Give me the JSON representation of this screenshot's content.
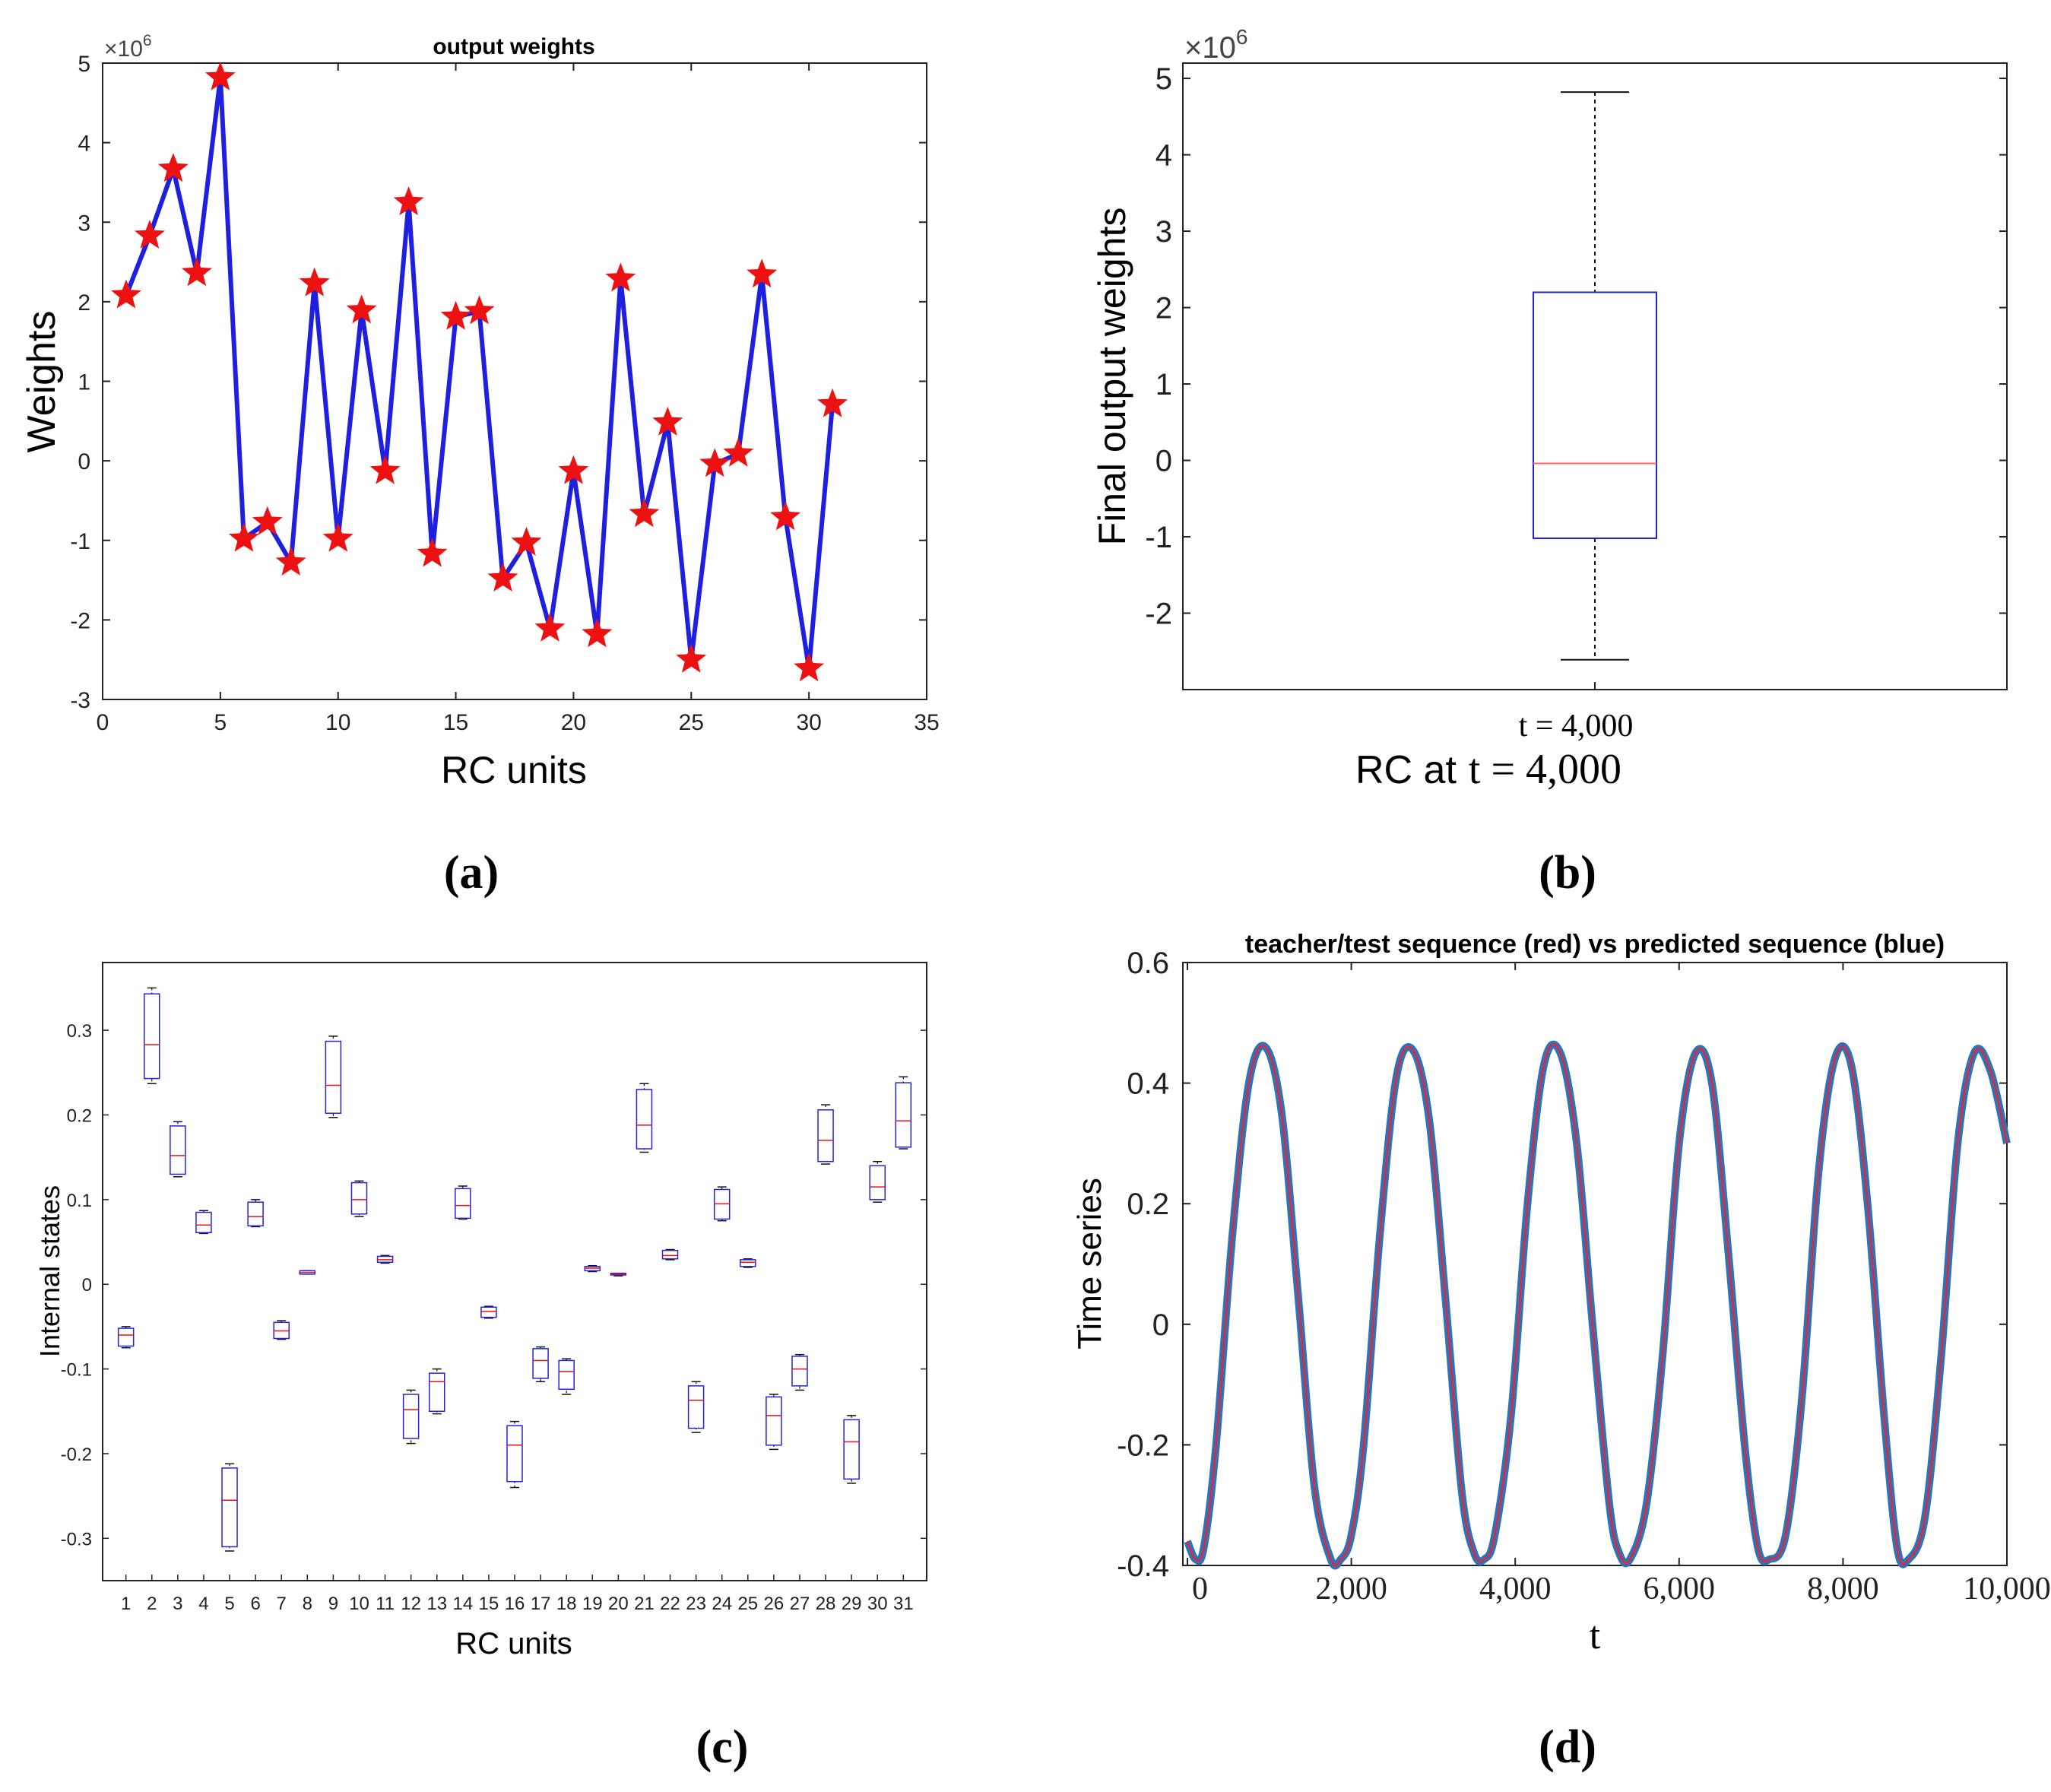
{
  "figure": {
    "panel_labels": [
      "(a)",
      "(b)",
      "(c)",
      "(d)"
    ]
  },
  "chart_data": [
    {
      "id": "a",
      "type": "line",
      "title": "output weights",
      "xlabel": "RC units",
      "ylabel": "Weights",
      "exponent": "×10^6",
      "xlim": [
        0,
        35
      ],
      "ylim": [
        -3,
        5
      ],
      "xticks": [
        "0",
        "5",
        "10",
        "15",
        "20",
        "25",
        "30",
        "35"
      ],
      "yticks": [
        "-3",
        "-2",
        "-1",
        "0",
        "1",
        "2",
        "3",
        "4",
        "5"
      ],
      "line_color": "#1f1fe0",
      "marker_color": "#ee1111",
      "marker": "star",
      "x": [
        1,
        2,
        3,
        4,
        5,
        6,
        7,
        8,
        9,
        10,
        11,
        12,
        13,
        14,
        15,
        16,
        17,
        18,
        19,
        20,
        21,
        22,
        23,
        24,
        25,
        26,
        27,
        28,
        29,
        30,
        31
      ],
      "values": [
        2.08,
        2.83,
        3.67,
        2.36,
        4.82,
        -0.98,
        -0.77,
        -1.28,
        2.23,
        -0.98,
        1.89,
        -0.13,
        3.25,
        -1.17,
        1.81,
        1.88,
        -1.48,
        -1.03,
        -2.11,
        -0.13,
        -2.18,
        2.29,
        -0.67,
        0.48,
        -2.5,
        -0.04,
        0.09,
        2.34,
        -0.71,
        -2.61,
        0.71
      ]
    },
    {
      "id": "b",
      "type": "boxplot",
      "xlabel_prefix": "RC at",
      "xlabel_value": "t = 4,000",
      "ylabel": "Final output weights",
      "exponent": "×10^6",
      "categories": [
        "t = 4,000"
      ],
      "ylim": [
        -3,
        5.2
      ],
      "yticks": [
        "-2",
        "-1",
        "0",
        "1",
        "2",
        "3",
        "4",
        "5"
      ],
      "box_color": "#2222dd",
      "median_color": "#ff6666",
      "box": {
        "min": -2.61,
        "q1": -1.02,
        "median": -0.04,
        "q3": 2.2,
        "max": 4.82
      }
    },
    {
      "id": "c",
      "type": "boxplot",
      "xlabel": "RC units",
      "ylabel": "Internal states",
      "ylim": [
        -0.35,
        0.38
      ],
      "yticks": [
        "-0.3",
        "-0.2",
        "-0.1",
        "0",
        "0.1",
        "0.2",
        "0.3"
      ],
      "categories": [
        "1",
        "2",
        "3",
        "4",
        "5",
        "6",
        "7",
        "8",
        "9",
        "10",
        "11",
        "12",
        "13",
        "14",
        "15",
        "16",
        "17",
        "18",
        "19",
        "20",
        "21",
        "22",
        "23",
        "24",
        "25",
        "26",
        "27",
        "28",
        "29",
        "30",
        "31"
      ],
      "box_color": "#2222dd",
      "median_color": "#ee1111",
      "boxes": [
        {
          "min": -0.075,
          "q1": -0.073,
          "median": -0.06,
          "q3": -0.052,
          "max": -0.05
        },
        {
          "min": 0.237,
          "q1": 0.243,
          "median": 0.283,
          "q3": 0.343,
          "max": 0.35
        },
        {
          "min": 0.127,
          "q1": 0.13,
          "median": 0.152,
          "q3": 0.187,
          "max": 0.192
        },
        {
          "min": 0.06,
          "q1": 0.061,
          "median": 0.07,
          "q3": 0.085,
          "max": 0.087
        },
        {
          "min": -0.315,
          "q1": -0.31,
          "median": -0.255,
          "q3": -0.217,
          "max": -0.212
        },
        {
          "min": 0.068,
          "q1": 0.069,
          "median": 0.08,
          "q3": 0.097,
          "max": 0.1
        },
        {
          "min": -0.065,
          "q1": -0.064,
          "median": -0.055,
          "q3": -0.045,
          "max": -0.043
        },
        {
          "min": 0.012,
          "q1": 0.012,
          "median": 0.014,
          "q3": 0.016,
          "max": 0.016
        },
        {
          "min": 0.197,
          "q1": 0.202,
          "median": 0.235,
          "q3": 0.287,
          "max": 0.293
        },
        {
          "min": 0.08,
          "q1": 0.083,
          "median": 0.1,
          "q3": 0.12,
          "max": 0.122
        },
        {
          "min": 0.025,
          "q1": 0.026,
          "median": 0.029,
          "q3": 0.033,
          "max": 0.034
        },
        {
          "min": -0.188,
          "q1": -0.182,
          "median": -0.148,
          "q3": -0.13,
          "max": -0.125
        },
        {
          "min": -0.153,
          "q1": -0.15,
          "median": -0.115,
          "q3": -0.105,
          "max": -0.1
        },
        {
          "min": 0.077,
          "q1": 0.078,
          "median": 0.093,
          "q3": 0.113,
          "max": 0.116
        },
        {
          "min": -0.04,
          "q1": -0.039,
          "median": -0.032,
          "q3": -0.027,
          "max": -0.026
        },
        {
          "min": -0.24,
          "q1": -0.233,
          "median": -0.19,
          "q3": -0.167,
          "max": -0.162
        },
        {
          "min": -0.115,
          "q1": -0.111,
          "median": -0.09,
          "q3": -0.076,
          "max": -0.074
        },
        {
          "min": -0.13,
          "q1": -0.124,
          "median": -0.103,
          "q3": -0.09,
          "max": -0.088
        },
        {
          "min": 0.015,
          "q1": 0.016,
          "median": 0.019,
          "q3": 0.021,
          "max": 0.022
        },
        {
          "min": 0.01,
          "q1": 0.011,
          "median": 0.012,
          "q3": 0.013,
          "max": 0.013
        },
        {
          "min": 0.156,
          "q1": 0.16,
          "median": 0.188,
          "q3": 0.23,
          "max": 0.237
        },
        {
          "min": 0.029,
          "q1": 0.03,
          "median": 0.034,
          "q3": 0.04,
          "max": 0.041
        },
        {
          "min": -0.175,
          "q1": -0.17,
          "median": -0.137,
          "q3": -0.12,
          "max": -0.115
        },
        {
          "min": 0.075,
          "q1": 0.077,
          "median": 0.095,
          "q3": 0.112,
          "max": 0.115
        },
        {
          "min": 0.02,
          "q1": 0.021,
          "median": 0.026,
          "q3": 0.029,
          "max": 0.03
        },
        {
          "min": -0.195,
          "q1": -0.19,
          "median": -0.155,
          "q3": -0.133,
          "max": -0.13
        },
        {
          "min": -0.125,
          "q1": -0.12,
          "median": -0.1,
          "q3": -0.085,
          "max": -0.083
        },
        {
          "min": 0.142,
          "q1": 0.145,
          "median": 0.17,
          "q3": 0.206,
          "max": 0.212
        },
        {
          "min": -0.235,
          "q1": -0.23,
          "median": -0.186,
          "q3": -0.16,
          "max": -0.155
        },
        {
          "min": 0.097,
          "q1": 0.1,
          "median": 0.115,
          "q3": 0.14,
          "max": 0.145
        },
        {
          "min": 0.16,
          "q1": 0.162,
          "median": 0.193,
          "q3": 0.238,
          "max": 0.245
        }
      ]
    },
    {
      "id": "d",
      "type": "line",
      "title": "teacher/test sequence (red) vs predicted sequence (blue)",
      "xlabel": "t",
      "ylabel": "Time series",
      "xlim": [
        0,
        10000
      ],
      "ylim": [
        -0.4,
        0.6
      ],
      "xticks": [
        "0",
        "2,000",
        "4,000",
        "6,000",
        "8,000",
        "10,000"
      ],
      "yticks": [
        "-0.4",
        "-0.2",
        "0",
        "0.2",
        "0.4",
        "0.6"
      ],
      "series": [
        {
          "name": "predicted sequence (blue)",
          "color": "#2e72b8"
        },
        {
          "name": "teacher/test sequence (red)",
          "color": "#e0283a"
        }
      ],
      "x": [
        0,
        100,
        200,
        350,
        550,
        750,
        950,
        1150,
        1350,
        1550,
        1750,
        1870,
        2000,
        2150,
        2350,
        2550,
        2750,
        2950,
        3150,
        3350,
        3500,
        3620,
        3750,
        3950,
        4150,
        4350,
        4550,
        4750,
        4950,
        5150,
        5270,
        5400,
        5600,
        5800,
        6000,
        6200,
        6400,
        6600,
        6800,
        6960,
        7100,
        7300,
        7500,
        7700,
        7900,
        8100,
        8300,
        8500,
        8660,
        8800,
        9000,
        9200,
        9400,
        9600,
        9800,
        10000
      ],
      "values": [
        -0.36,
        -0.39,
        -0.37,
        -0.2,
        0.15,
        0.4,
        0.46,
        0.35,
        0.05,
        -0.27,
        -0.39,
        -0.39,
        -0.35,
        -0.2,
        0.15,
        0.41,
        0.455,
        0.34,
        0.04,
        -0.28,
        -0.38,
        -0.39,
        -0.35,
        -0.15,
        0.2,
        0.43,
        0.45,
        0.3,
        -0.01,
        -0.3,
        -0.38,
        -0.39,
        -0.3,
        -0.05,
        0.3,
        0.45,
        0.4,
        0.12,
        -0.2,
        -0.37,
        -0.39,
        -0.35,
        -0.12,
        0.25,
        0.44,
        0.43,
        0.2,
        -0.15,
        -0.37,
        -0.39,
        -0.32,
        -0.05,
        0.3,
        0.45,
        0.42,
        0.3
      ]
    }
  ]
}
